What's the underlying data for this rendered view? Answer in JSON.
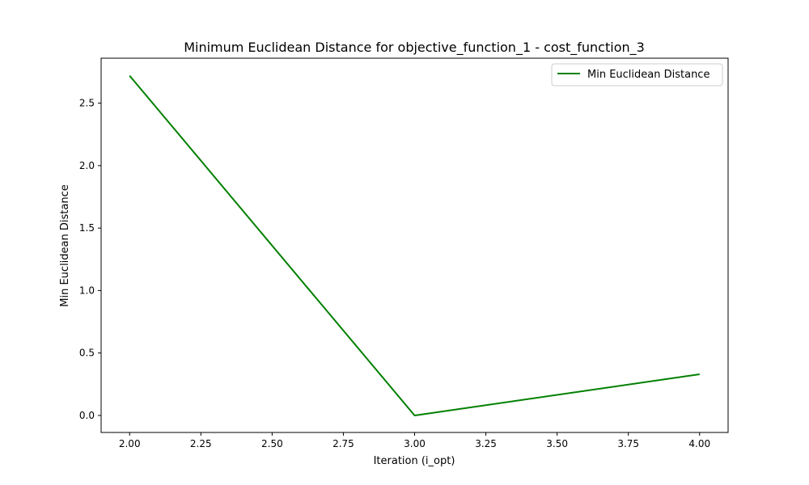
{
  "chart_data": {
    "type": "line",
    "title": "Minimum Euclidean Distance for objective_function_1 - cost_function_3",
    "xlabel": "Iteration (i_opt)",
    "ylabel": "Min Euclidean Distance",
    "xlim": [
      1.9,
      4.1
    ],
    "ylim": [
      -0.136,
      2.86
    ],
    "xticks": [
      2.0,
      2.25,
      2.5,
      2.75,
      3.0,
      3.25,
      3.5,
      3.75,
      4.0
    ],
    "xtick_labels": [
      "2.00",
      "2.25",
      "2.50",
      "2.75",
      "3.00",
      "3.25",
      "3.50",
      "3.75",
      "4.00"
    ],
    "yticks": [
      0.0,
      0.5,
      1.0,
      1.5,
      2.0,
      2.5
    ],
    "ytick_labels": [
      "0.0",
      "0.5",
      "1.0",
      "1.5",
      "2.0",
      "2.5"
    ],
    "grid": false,
    "legend_position": "top-right",
    "series": [
      {
        "name": "Min Euclidean Distance",
        "color": "#008000",
        "x": [
          2,
          3,
          4
        ],
        "y": [
          2.72,
          0.0,
          0.33
        ]
      }
    ]
  }
}
